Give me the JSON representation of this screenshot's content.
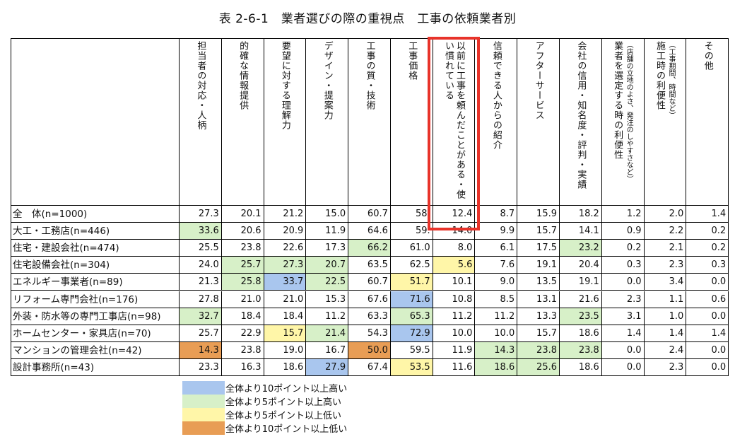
{
  "title": "表 2-6-1　業者選びの際の重視点　工事の依頼業者別",
  "colors": {
    "blue": "#a9c6ee",
    "green": "#d7f0c8",
    "yellow": "#fff6a8",
    "orange": "#e89d55",
    "highlight_box": "#e8332a"
  },
  "columns": [
    {
      "label": "担当者の対応・人柄",
      "note": ""
    },
    {
      "label": "的確な情報提供",
      "note": ""
    },
    {
      "label": "要望に対する理解力",
      "note": ""
    },
    {
      "label": "デザイン・提案力",
      "note": ""
    },
    {
      "label": "工事の質・技術",
      "note": ""
    },
    {
      "label": "工事価格",
      "note": ""
    },
    {
      "label": "以前に工事を頼んだことがある・使い慣れている",
      "note": ""
    },
    {
      "label": "信頼できる人からの紹介",
      "note": ""
    },
    {
      "label": "アフターサービス",
      "note": ""
    },
    {
      "label": "会社の信用・知名度・評判・実績",
      "note": ""
    },
    {
      "label": "業者を選定する時の利便性",
      "note": "（店舗の立地のよさ、発注のしやすさなど）"
    },
    {
      "label": "施工時の利便性",
      "note": "（工事期間、時間など）"
    },
    {
      "label": "その他",
      "note": ""
    }
  ],
  "rows": [
    {
      "label": "全　体(n=1000)",
      "values": [
        "27.3",
        "20.1",
        "21.2",
        "15.0",
        "60.7",
        "58.",
        "12.4",
        "8.7",
        "15.9",
        "18.2",
        "1.2",
        "2.0",
        "1.4"
      ],
      "colors": [
        "",
        "",
        "",
        "",
        "",
        "",
        "",
        "",
        "",
        "",
        "",
        "",
        ""
      ]
    },
    {
      "label": "大工・工務店(n=446)",
      "values": [
        "33.6",
        "20.6",
        "20.9",
        "11.9",
        "64.6",
        "59.",
        "14.0",
        "9.9",
        "15.7",
        "14.1",
        "0.9",
        "2.2",
        "0.2"
      ],
      "colors": [
        "green",
        "",
        "",
        "",
        "",
        "",
        "",
        "",
        "",
        "",
        "",
        "",
        ""
      ]
    },
    {
      "label": "住宅・建設会社(n=474)",
      "values": [
        "25.5",
        "23.8",
        "22.6",
        "17.3",
        "66.2",
        "61.0",
        "8.0",
        "6.1",
        "17.5",
        "23.2",
        "0.2",
        "2.1",
        "0.2"
      ],
      "colors": [
        "",
        "",
        "",
        "",
        "green",
        "",
        "",
        "",
        "",
        "green",
        "",
        "",
        ""
      ]
    },
    {
      "label": "住宅設備会社(n=304)",
      "values": [
        "24.0",
        "25.7",
        "27.3",
        "20.7",
        "63.5",
        "62.5",
        "5.6",
        "7.6",
        "19.1",
        "20.4",
        "0.3",
        "2.3",
        "0.3"
      ],
      "colors": [
        "",
        "green",
        "green",
        "green",
        "",
        "",
        "yellow",
        "",
        "",
        "",
        "",
        "",
        ""
      ]
    },
    {
      "label": "エネルギー事業者(n=89)",
      "values": [
        "21.3",
        "25.8",
        "33.7",
        "22.5",
        "60.7",
        "51.7",
        "10.1",
        "9.0",
        "13.5",
        "19.1",
        "0.0",
        "3.4",
        "0.0"
      ],
      "colors": [
        "",
        "green",
        "blue",
        "green",
        "",
        "yellow",
        "",
        "",
        "",
        "",
        "",
        "",
        ""
      ]
    },
    {
      "label": "リフォーム専門会社(n=176)",
      "values": [
        "27.8",
        "21.0",
        "21.0",
        "15.3",
        "67.6",
        "71.6",
        "10.8",
        "8.5",
        "13.1",
        "21.6",
        "2.3",
        "1.1",
        "0.6"
      ],
      "colors": [
        "",
        "",
        "",
        "",
        "",
        "blue",
        "",
        "",
        "",
        "",
        "",
        "",
        ""
      ]
    },
    {
      "label": "外装・防水等の専門工事店(n=98)",
      "values": [
        "32.7",
        "18.4",
        "18.4",
        "11.2",
        "63.3",
        "65.3",
        "11.2",
        "11.2",
        "13.3",
        "23.5",
        "3.1",
        "1.0",
        "0.0"
      ],
      "colors": [
        "green",
        "",
        "",
        "",
        "",
        "green",
        "",
        "",
        "",
        "green",
        "",
        "",
        ""
      ]
    },
    {
      "label": "ホームセンター・家具店(n=70)",
      "values": [
        "25.7",
        "22.9",
        "15.7",
        "21.4",
        "54.3",
        "72.9",
        "10.0",
        "10.0",
        "15.7",
        "18.6",
        "1.4",
        "1.4",
        "1.4"
      ],
      "colors": [
        "",
        "",
        "yellow",
        "green",
        "",
        "blue",
        "",
        "",
        "",
        "",
        "",
        "",
        ""
      ]
    },
    {
      "label": "マンションの管理会社(n=42)",
      "values": [
        "14.3",
        "23.8",
        "19.0",
        "16.7",
        "50.0",
        "59.5",
        "11.9",
        "14.3",
        "23.8",
        "23.8",
        "0.0",
        "2.4",
        "0.0"
      ],
      "colors": [
        "orange",
        "",
        "",
        "",
        "orange",
        "",
        "",
        "green",
        "green",
        "green",
        "",
        "",
        ""
      ]
    },
    {
      "label": "設計事務所(n=43)",
      "values": [
        "23.3",
        "16.3",
        "18.6",
        "27.9",
        "67.4",
        "53.5",
        "11.6",
        "18.6",
        "25.6",
        "18.6",
        "0.0",
        "2.3",
        "0.0"
      ],
      "colors": [
        "",
        "",
        "",
        "blue",
        "",
        "yellow",
        "",
        "green",
        "green",
        "",
        "",
        "",
        ""
      ]
    }
  ],
  "legend": [
    {
      "color": "blue",
      "label": "全体より10ポイント以上高い"
    },
    {
      "color": "green",
      "label": "全体より5ポイント以上高い"
    },
    {
      "color": "yellow",
      "label": "全体より5ポイント以上低い"
    },
    {
      "color": "orange",
      "label": "全体より10ポイント以上低い"
    }
  ]
}
